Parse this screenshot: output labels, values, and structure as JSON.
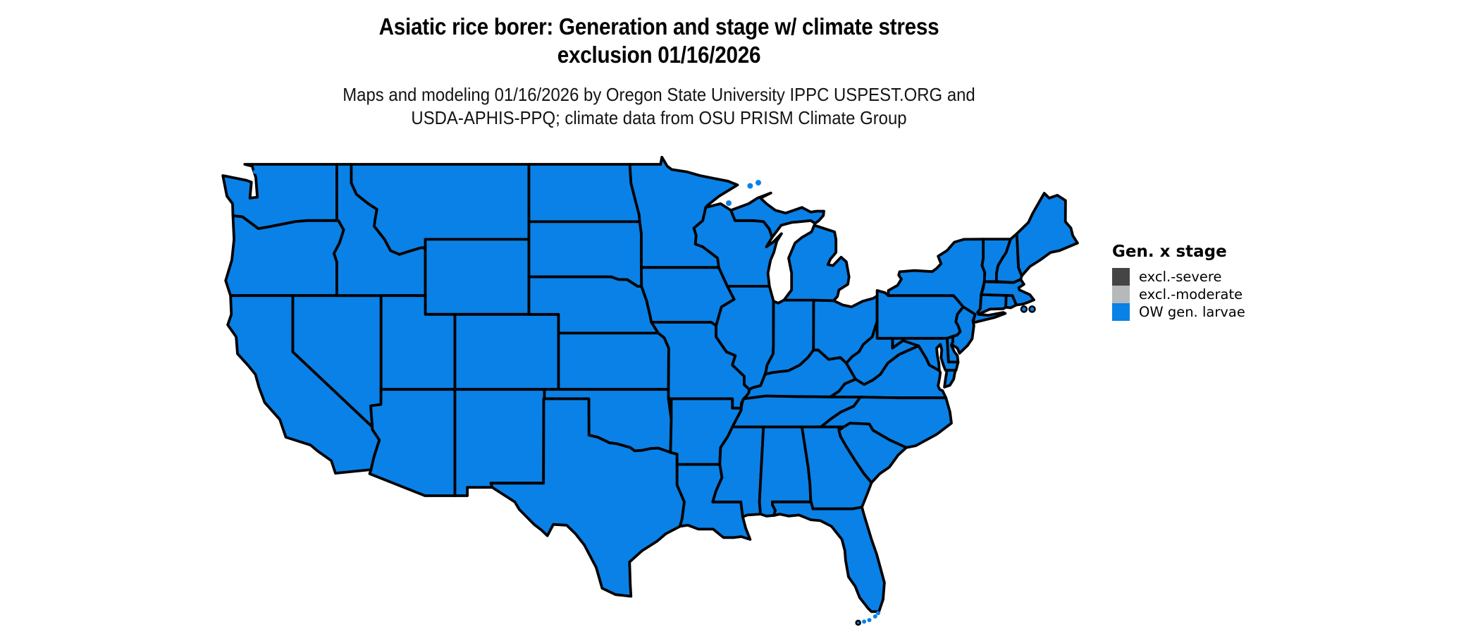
{
  "page": {
    "background": "#ffffff",
    "text_color": "#000000"
  },
  "title": {
    "line1": "Asiatic rice borer: Generation and stage w/ climate stress",
    "line2": "exclusion 01/16/2026"
  },
  "subtitle": {
    "line1": "Maps and modeling 01/16/2026 by Oregon State University IPPC USPEST.ORG and",
    "line2": "USDA-APHIS-PPQ; climate data from OSU PRISM Climate Group"
  },
  "legend": {
    "title": "Gen. x stage",
    "items": [
      {
        "label": "excl.-severe",
        "color": "#454545"
      },
      {
        "label": "excl.-moderate",
        "color": "#b6b9ba"
      },
      {
        "label": "OW gen. larvae",
        "color": "#0a81e6"
      }
    ]
  },
  "map": {
    "border_color": "#000000",
    "water_background": "#ffffff",
    "all_states_category": "OW gen. larvae"
  }
}
